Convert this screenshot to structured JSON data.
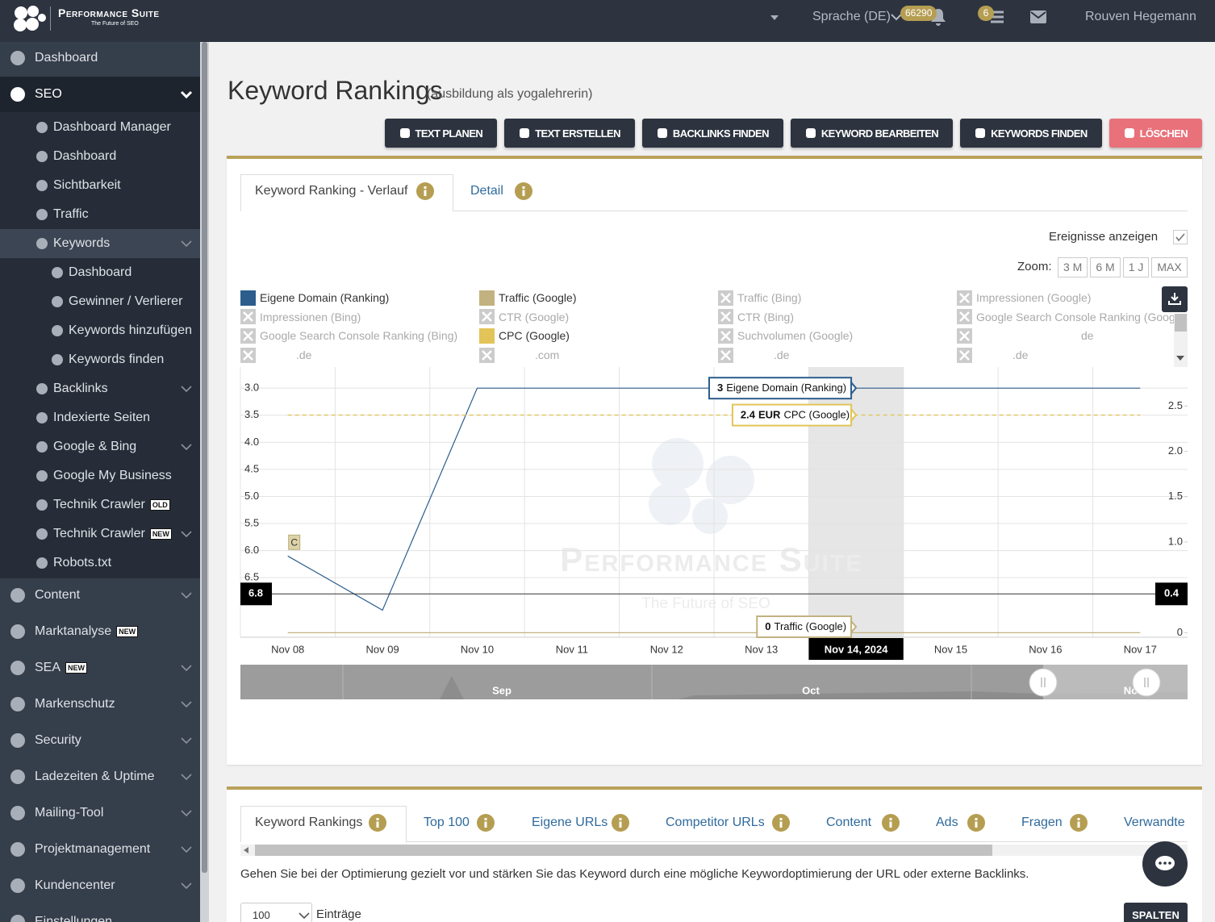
{
  "topbar": {
    "brand": "Performance Suite",
    "tagline": "The Future of SEO",
    "language": "Sprache (DE)",
    "notifications": "66290",
    "tasks": "6",
    "user": "Rouven Hegemann"
  },
  "sidebar": [
    {
      "label": "Dashboard",
      "level": 0
    },
    {
      "label": "SEO",
      "level": 0,
      "chevron": true,
      "expanded": true
    },
    {
      "label": "Dashboard Manager",
      "level": 1
    },
    {
      "label": "Dashboard",
      "level": 1
    },
    {
      "label": "Sichtbarkeit",
      "level": 1
    },
    {
      "label": "Traffic",
      "level": 1
    },
    {
      "label": "Keywords",
      "level": 1,
      "chevron": true,
      "active": true
    },
    {
      "label": "Dashboard",
      "level": 2
    },
    {
      "label": "Gewinner / Verlierer",
      "level": 2
    },
    {
      "label": "Keywords hinzufügen",
      "level": 2
    },
    {
      "label": "Keywords finden",
      "level": 2
    },
    {
      "label": "Backlinks",
      "level": 1,
      "chevron": true
    },
    {
      "label": "Indexierte Seiten",
      "level": 1
    },
    {
      "label": "Google & Bing",
      "level": 1,
      "chevron": true
    },
    {
      "label": "Google My Business",
      "level": 1
    },
    {
      "label": "Technik Crawler",
      "level": 1,
      "badge": "OLD"
    },
    {
      "label": "Technik Crawler",
      "level": 1,
      "badge": "NEW",
      "chevron": true
    },
    {
      "label": "Robots.txt",
      "level": 1
    },
    {
      "label": "Content",
      "level": 0,
      "chevron": true
    },
    {
      "label": "Marktanalyse",
      "level": 0,
      "badge": "NEW"
    },
    {
      "label": "SEA",
      "level": 0,
      "badge": "NEW",
      "chevron": true
    },
    {
      "label": "Markenschutz",
      "level": 0,
      "chevron": true
    },
    {
      "label": "Security",
      "level": 0,
      "chevron": true
    },
    {
      "label": "Ladezeiten & Uptime",
      "level": 0,
      "chevron": true
    },
    {
      "label": "Mailing-Tool",
      "level": 0,
      "chevron": true
    },
    {
      "label": "Projektmanagement",
      "level": 0,
      "chevron": true
    },
    {
      "label": "Kundencenter",
      "level": 0,
      "chevron": true
    },
    {
      "label": "Einstellungen",
      "level": 0
    }
  ],
  "header": {
    "title": "Keyword Rankings",
    "subtitle": "(ausbildung als yogalehrerin)",
    "buttons": [
      "TEXT PLANEN",
      "TEXT ERSTELLEN",
      "BACKLINKS FINDEN",
      "KEYWORD BEARBEITEN",
      "KEYWORDS FINDEN",
      "LÖSCHEN"
    ]
  },
  "chart_tabs": [
    "Keyword Ranking - Verlauf",
    "Detail"
  ],
  "events_toggle": "Ereignisse anzeigen",
  "zoom": {
    "label": "Zoom:",
    "options": [
      "3 M",
      "6 M",
      "1 J",
      "MAX"
    ]
  },
  "chart_data": {
    "type": "line",
    "categories": [
      "Nov 08",
      "Nov 09",
      "Nov 10",
      "Nov 11",
      "Nov 12",
      "Nov 13",
      "Nov 14, 2024",
      "Nov 15",
      "Nov 16",
      "Nov 17"
    ],
    "series": [
      {
        "name": "Eigene Domain (Ranking)",
        "color": "#2c5d8c",
        "values": [
          6.1,
          7.1,
          3,
          3,
          3,
          3,
          3,
          3,
          3,
          3
        ]
      },
      {
        "name": "Traffic (Google)",
        "color": "#c2b280",
        "axis": "y2",
        "values": [
          0,
          0,
          0,
          0,
          0,
          0,
          0,
          0,
          0,
          0
        ]
      },
      {
        "name": "Traffic (Bing)",
        "visible": false
      },
      {
        "name": "Impressionen (Google)",
        "visible": false
      },
      {
        "name": "Impressionen (Bing)",
        "visible": false
      },
      {
        "name": "CTR (Google)",
        "visible": false
      },
      {
        "name": "CTR (Bing)",
        "visible": false
      },
      {
        "name": "Google Search Console Ranking (Google)",
        "visible": false
      },
      {
        "name": "Google Search Console Ranking (Bing)",
        "visible": false
      },
      {
        "name": "CPC (Google)",
        "color": "#e2c458",
        "axis": "y2",
        "dashed": true,
        "unit": "EUR",
        "values": [
          2.4,
          2.4,
          2.4,
          2.4,
          2.4,
          2.4,
          2.4,
          2.4,
          2.4,
          2.4
        ]
      },
      {
        "name": "Suchvolumen (Google)",
        "visible": false
      },
      {
        "name": "de",
        "visible": false
      },
      {
        "name": ".de",
        "visible": false
      },
      {
        "name": ".com",
        "visible": false
      },
      {
        "name": ".de",
        "visible": false
      },
      {
        "name": ".de",
        "visible": false
      }
    ],
    "ylim": [
      7.6,
      2.61
    ],
    "yticks": [
      {
        "value": 3,
        "label": "3.0"
      },
      3.5,
      {
        "value": 4,
        "label": "4.0"
      },
      4.5,
      {
        "value": 5,
        "label": "5.0"
      },
      5.5,
      {
        "value": 6,
        "label": "6.0"
      },
      6.5
    ],
    "y2lim": [
      -0.05,
      2.93
    ],
    "y2ticks": [
      0,
      0.5,
      {
        "value": 1,
        "label": "1.0"
      },
      1.5,
      {
        "value": 2,
        "label": "2.0"
      },
      2.5
    ],
    "grid": true,
    "highlight_index": 6,
    "crosshair": {
      "y": 6.8,
      "y2": 0.4
    },
    "events": [
      {
        "category": "Nov 08",
        "label": "C"
      }
    ],
    "watermark": {
      "title": "Performance Suite",
      "subtitle": "The Future of SEO"
    },
    "navigator": {
      "labels": [
        "Sep",
        "Oct",
        "Nov"
      ]
    }
  },
  "bottom": {
    "tabs": [
      "Keyword Rankings",
      "Top 100",
      "Eigene URLs",
      "Competitor URLs",
      "Content",
      "Ads",
      "Fragen",
      "Verwandte"
    ],
    "description": "Gehen Sie bei der Optimierung gezielt vor und stärken Sie das Keyword durch eine mögliche Keywordoptimierung der URL oder externe Backlinks.",
    "page_size": "100",
    "page_size_label": "Einträge",
    "columns_button": "SPALTEN"
  }
}
